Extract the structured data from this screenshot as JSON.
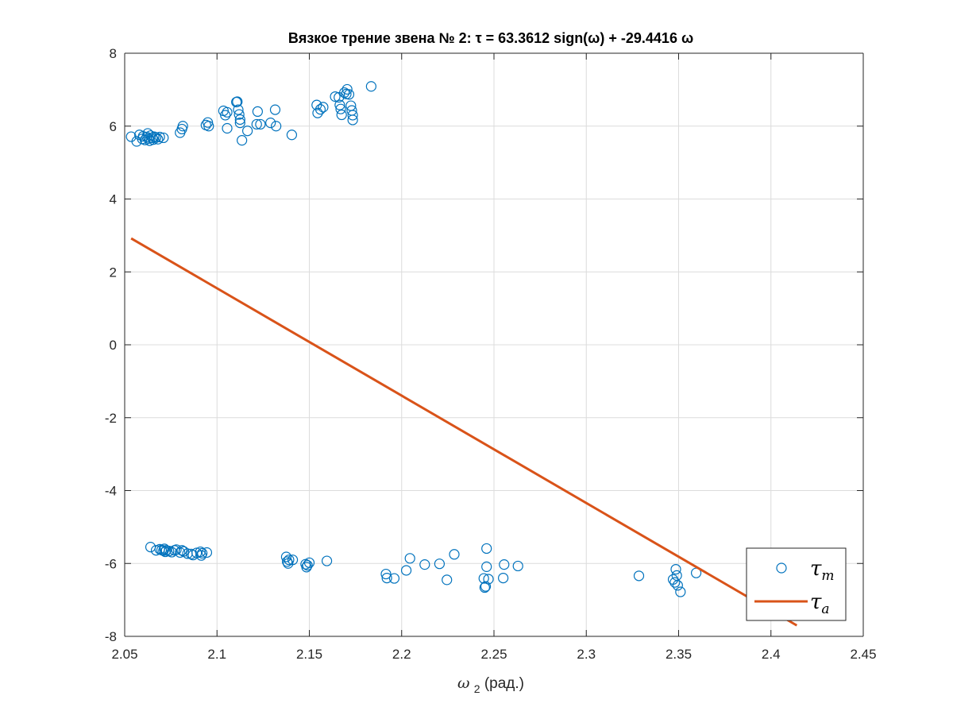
{
  "chart_data": {
    "type": "scatter",
    "title": "Вязкое трение звена № 2: τ = 63.3612 sign(ω) +  -29.4416 ω",
    "xlabel": {
      "symbol": "ω",
      "subscript": "2",
      "text": "(рад.)"
    },
    "ylabel": "",
    "xlim": [
      2.05,
      2.45
    ],
    "ylim": [
      -8,
      8
    ],
    "x_ticks": [
      "2.05",
      "2.1",
      "2.15",
      "2.2",
      "2.25",
      "2.3",
      "2.35",
      "2.4",
      "2.45"
    ],
    "x_tick_values": [
      2.05,
      2.1,
      2.15,
      2.2,
      2.25,
      2.3,
      2.35,
      2.4,
      2.45
    ],
    "y_ticks": [
      "8",
      "6",
      "4",
      "2",
      "0",
      "-2",
      "-4",
      "-6",
      "-8"
    ],
    "y_tick_values": [
      8,
      6,
      4,
      2,
      0,
      -2,
      -4,
      -6,
      -8
    ],
    "grid": true,
    "legend_position": "bottom-right",
    "series": [
      {
        "name": "τ_m",
        "legend_symbol": "τ",
        "legend_subscript": "m",
        "kind": "scatter",
        "marker": "circle-open",
        "color": "#0072BD",
        "points": [
          [
            2.0535,
            5.71
          ],
          [
            2.0565,
            5.58
          ],
          [
            2.058,
            5.76
          ],
          [
            2.0595,
            5.65
          ],
          [
            2.06,
            5.72
          ],
          [
            2.061,
            5.62
          ],
          [
            2.062,
            5.7
          ],
          [
            2.0625,
            5.8
          ],
          [
            2.063,
            5.66
          ],
          [
            2.0635,
            5.6
          ],
          [
            2.064,
            5.74
          ],
          [
            2.065,
            5.68
          ],
          [
            2.0655,
            5.63
          ],
          [
            2.066,
            5.71
          ],
          [
            2.067,
            5.69
          ],
          [
            2.068,
            5.64
          ],
          [
            2.069,
            5.7
          ],
          [
            2.071,
            5.68
          ],
          [
            2.08,
            5.82
          ],
          [
            2.081,
            5.92
          ],
          [
            2.0815,
            6.0
          ],
          [
            2.094,
            6.03
          ],
          [
            2.095,
            6.1
          ],
          [
            2.0955,
            6.0
          ],
          [
            2.1035,
            6.42
          ],
          [
            2.1045,
            6.3
          ],
          [
            2.1055,
            6.38
          ],
          [
            2.1055,
            5.94
          ],
          [
            2.1105,
            6.66
          ],
          [
            2.111,
            6.67
          ],
          [
            2.1115,
            6.45
          ],
          [
            2.112,
            6.32
          ],
          [
            2.1125,
            6.18
          ],
          [
            2.1125,
            6.09
          ],
          [
            2.1135,
            5.61
          ],
          [
            2.1165,
            5.87
          ],
          [
            2.1215,
            6.05
          ],
          [
            2.122,
            6.4
          ],
          [
            2.1235,
            6.05
          ],
          [
            2.129,
            6.09
          ],
          [
            2.1315,
            6.45
          ],
          [
            2.132,
            6.0
          ],
          [
            2.1405,
            5.76
          ],
          [
            2.154,
            6.58
          ],
          [
            2.1545,
            6.36
          ],
          [
            2.156,
            6.46
          ],
          [
            2.1575,
            6.52
          ],
          [
            2.164,
            6.81
          ],
          [
            2.166,
            6.79
          ],
          [
            2.1665,
            6.58
          ],
          [
            2.167,
            6.47
          ],
          [
            2.1675,
            6.31
          ],
          [
            2.169,
            6.92
          ],
          [
            2.17,
            6.88
          ],
          [
            2.1705,
            7.01
          ],
          [
            2.1715,
            6.87
          ],
          [
            2.1725,
            6.56
          ],
          [
            2.173,
            6.43
          ],
          [
            2.1735,
            6.3
          ],
          [
            2.1735,
            6.17
          ],
          [
            2.1835,
            7.09
          ],
          [
            2.064,
            -5.55
          ],
          [
            2.067,
            -5.64
          ],
          [
            2.069,
            -5.61
          ],
          [
            2.07,
            -5.63
          ],
          [
            2.071,
            -5.65
          ],
          [
            2.0715,
            -5.6
          ],
          [
            2.072,
            -5.68
          ],
          [
            2.0725,
            -5.64
          ],
          [
            2.074,
            -5.66
          ],
          [
            2.0755,
            -5.69
          ],
          [
            2.077,
            -5.64
          ],
          [
            2.078,
            -5.62
          ],
          [
            2.08,
            -5.7
          ],
          [
            2.081,
            -5.64
          ],
          [
            2.082,
            -5.67
          ],
          [
            2.084,
            -5.73
          ],
          [
            2.086,
            -5.74
          ],
          [
            2.087,
            -5.77
          ],
          [
            2.089,
            -5.71
          ],
          [
            2.091,
            -5.68
          ],
          [
            2.0915,
            -5.78
          ],
          [
            2.092,
            -5.72
          ],
          [
            2.0945,
            -5.7
          ],
          [
            2.1375,
            -5.82
          ],
          [
            2.138,
            -5.95
          ],
          [
            2.1385,
            -6.0
          ],
          [
            2.139,
            -5.9
          ],
          [
            2.141,
            -5.9
          ],
          [
            2.148,
            -6.02
          ],
          [
            2.1485,
            -6.1
          ],
          [
            2.149,
            -6.05
          ],
          [
            2.15,
            -5.98
          ],
          [
            2.1595,
            -5.93
          ],
          [
            2.1915,
            -6.29
          ],
          [
            2.192,
            -6.4
          ],
          [
            2.196,
            -6.41
          ],
          [
            2.2025,
            -6.19
          ],
          [
            2.2045,
            -5.86
          ],
          [
            2.2125,
            -6.03
          ],
          [
            2.2205,
            -6.01
          ],
          [
            2.2245,
            -6.45
          ],
          [
            2.2285,
            -5.75
          ],
          [
            2.2445,
            -6.41
          ],
          [
            2.245,
            -6.66
          ],
          [
            2.2455,
            -6.63
          ],
          [
            2.246,
            -6.09
          ],
          [
            2.246,
            -5.59
          ],
          [
            2.247,
            -6.43
          ],
          [
            2.255,
            -6.4
          ],
          [
            2.2555,
            -6.03
          ],
          [
            2.263,
            -6.07
          ],
          [
            2.3285,
            -6.34
          ],
          [
            2.347,
            -6.44
          ],
          [
            2.348,
            -6.52
          ],
          [
            2.3485,
            -6.16
          ],
          [
            2.349,
            -6.33
          ],
          [
            2.3495,
            -6.6
          ],
          [
            2.351,
            -6.78
          ],
          [
            2.3595,
            -6.26
          ]
        ]
      },
      {
        "name": "τ_a",
        "legend_symbol": "τ",
        "legend_subscript": "a",
        "kind": "line",
        "color": "#D95319",
        "x": [
          2.0535,
          2.414
        ],
        "y": [
          2.92,
          -7.7
        ]
      }
    ]
  }
}
